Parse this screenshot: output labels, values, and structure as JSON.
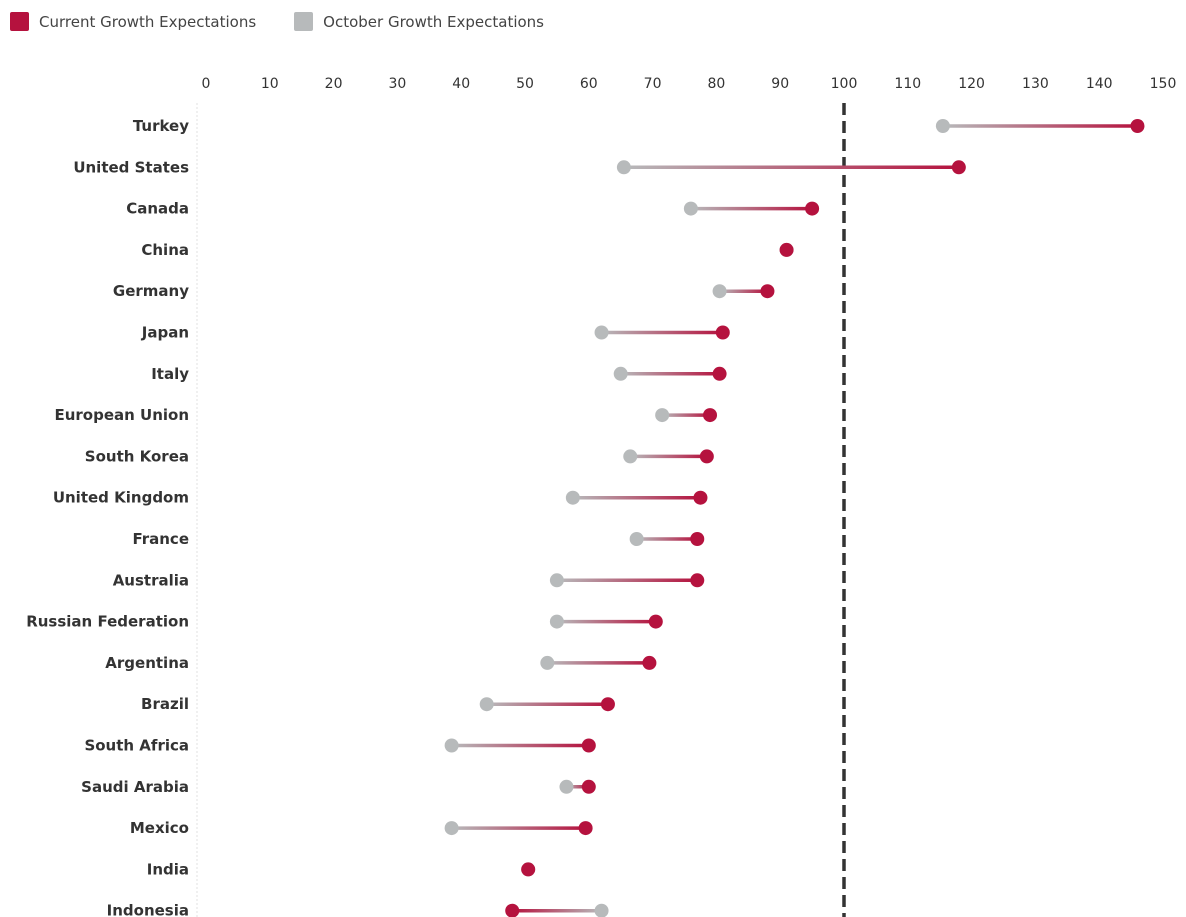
{
  "legend": {
    "current_label": "Current Growth Expectations",
    "october_label": "October Growth Expectations"
  },
  "colors": {
    "current": "#b5123e",
    "october": "#b7babb",
    "reference_line": "#333333"
  },
  "chart_data": {
    "type": "dumbbell",
    "title": "",
    "xlabel": "",
    "ylabel": "",
    "xlim": [
      0,
      150
    ],
    "x_ticks": [
      0,
      10,
      20,
      30,
      40,
      50,
      60,
      70,
      80,
      90,
      100,
      110,
      120,
      130,
      140,
      150
    ],
    "x_axis_position": "top",
    "reference_line": 100,
    "legend_position": "top-left",
    "grid": false,
    "categories": [
      "Turkey",
      "United States",
      "Canada",
      "China",
      "Germany",
      "Japan",
      "Italy",
      "European Union",
      "South Korea",
      "United Kingdom",
      "France",
      "Australia",
      "Russian Federation",
      "Argentina",
      "Brazil",
      "South Africa",
      "Saudi Arabia",
      "Mexico",
      "India",
      "Indonesia"
    ],
    "series": [
      {
        "name": "Current Growth Expectations",
        "values": [
          146,
          118,
          95,
          91,
          88,
          81,
          80.5,
          79,
          78.5,
          77.5,
          77,
          77,
          70.5,
          69.5,
          63,
          60,
          60,
          59.5,
          50.5,
          48
        ]
      },
      {
        "name": "October Growth Expectations",
        "values": [
          115.5,
          65.5,
          76,
          91,
          80.5,
          62,
          65,
          71.5,
          66.5,
          57.5,
          67.5,
          55,
          55,
          53.5,
          44,
          38.5,
          56.5,
          38.5,
          50.5,
          62
        ]
      }
    ]
  }
}
